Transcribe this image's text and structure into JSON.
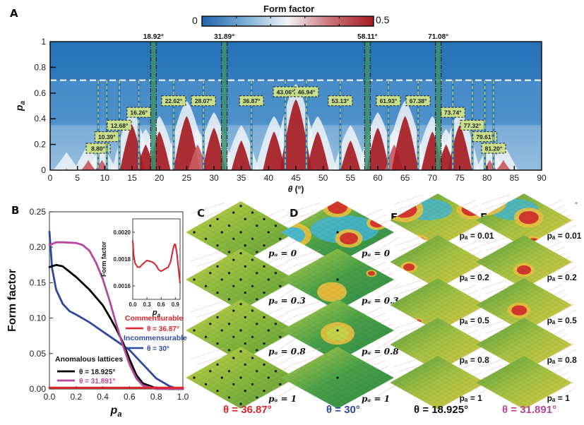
{
  "panels": {
    "A": "A",
    "B": "B",
    "C": "C",
    "D": "D",
    "E": "E",
    "F": "F",
    "stray_mark": "″"
  },
  "colors": {
    "blue": "#2672b8",
    "white": "#f3f5f8",
    "red": "#a51c22",
    "commensurable": "#e0242b",
    "incommensurable": "#2e4a9e",
    "anomalous_18": "#000000",
    "anomalous_31": "#b5479f",
    "label_box": "#c9df8c",
    "anomalous_band": "#3d8f6e",
    "dash_line": "#f2e64a"
  },
  "chart_data": [
    {
      "id": "A",
      "type": "heatmap",
      "title": "",
      "xlabel": "θ (°)",
      "ylabel": "p_a",
      "xlim": [
        0,
        90
      ],
      "ylim": [
        0,
        1
      ],
      "xticks": [
        "0",
        "5",
        "10",
        "15",
        "20",
        "25",
        "30",
        "35",
        "40",
        "45",
        "50",
        "55",
        "60",
        "65",
        "70",
        "75",
        "80",
        "85",
        "90"
      ],
      "yticks": [
        "0",
        "0.2",
        "0.4",
        "0.6",
        "0.8",
        "1"
      ],
      "colorbar": {
        "title": "Form factor",
        "min": 0,
        "max": 0.5,
        "min_label": "0",
        "max_label": "0.5",
        "colors": [
          "#2672b8",
          "#f3f5f8",
          "#a51c22"
        ]
      },
      "threshold_pa": 0.7,
      "anomalous_angles": [
        {
          "theta": 18.92,
          "label": "18.92°"
        },
        {
          "theta": 31.89,
          "label": "31.89°"
        },
        {
          "theta": 58.11,
          "label": "58.11°"
        },
        {
          "theta": 71.08,
          "label": "71.08°"
        }
      ],
      "commensurate_angles": [
        {
          "theta": 8.8,
          "label": "8.80°",
          "label_pa": 0.17
        },
        {
          "theta": 10.39,
          "label": "10.39°",
          "label_pa": 0.26
        },
        {
          "theta": 12.68,
          "label": "12.68°",
          "label_pa": 0.35
        },
        {
          "theta": 16.26,
          "label": "16.26°",
          "label_pa": 0.45
        },
        {
          "theta": 22.62,
          "label": "22.62°",
          "label_pa": 0.54
        },
        {
          "theta": 28.07,
          "label": "28.07°",
          "label_pa": 0.54
        },
        {
          "theta": 36.87,
          "label": "36.87°",
          "label_pa": 0.54
        },
        {
          "theta": 43.06,
          "label": "43.06°",
          "label_pa": 0.61
        },
        {
          "theta": 46.94,
          "label": "46.94°",
          "label_pa": 0.61
        },
        {
          "theta": 53.13,
          "label": "53.13°",
          "label_pa": 0.54
        },
        {
          "theta": 61.93,
          "label": "61.93°",
          "label_pa": 0.54
        },
        {
          "theta": 67.38,
          "label": "67.38°",
          "label_pa": 0.54
        },
        {
          "theta": 73.74,
          "label": "73.74°",
          "label_pa": 0.45
        },
        {
          "theta": 77.32,
          "label": "77.32°",
          "label_pa": 0.35
        },
        {
          "theta": 79.61,
          "label": "79.61°",
          "label_pa": 0.26
        },
        {
          "theta": 81.2,
          "label": "81.20°",
          "label_pa": 0.17
        }
      ],
      "peaks": [
        {
          "theta": 3,
          "height": 0.02,
          "intensity": 0.15
        },
        {
          "theta": 7,
          "height": 0.08,
          "intensity": 0.3
        },
        {
          "theta": 9.5,
          "height": 0.08,
          "intensity": 0.35
        },
        {
          "theta": 15,
          "height": 0.35,
          "intensity": 0.5
        },
        {
          "theta": 17.5,
          "height": 0.2,
          "intensity": 0.45
        },
        {
          "theta": 20,
          "height": 0.3,
          "intensity": 0.45
        },
        {
          "theta": 25,
          "height": 0.42,
          "intensity": 0.5
        },
        {
          "theta": 27,
          "height": 0.2,
          "intensity": 0.4
        },
        {
          "theta": 30,
          "height": 0.33,
          "intensity": 0.45
        },
        {
          "theta": 35,
          "height": 0.23,
          "intensity": 0.45
        },
        {
          "theta": 41,
          "height": 0.3,
          "intensity": 0.5
        },
        {
          "theta": 45,
          "height": 0.55,
          "intensity": 0.5
        },
        {
          "theta": 49,
          "height": 0.3,
          "intensity": 0.5
        },
        {
          "theta": 55,
          "height": 0.23,
          "intensity": 0.45
        },
        {
          "theta": 60,
          "height": 0.33,
          "intensity": 0.45
        },
        {
          "theta": 63,
          "height": 0.2,
          "intensity": 0.4
        },
        {
          "theta": 65,
          "height": 0.42,
          "intensity": 0.5
        },
        {
          "theta": 70,
          "height": 0.3,
          "intensity": 0.45
        },
        {
          "theta": 72.5,
          "height": 0.2,
          "intensity": 0.45
        },
        {
          "theta": 75,
          "height": 0.35,
          "intensity": 0.5
        },
        {
          "theta": 80.5,
          "height": 0.08,
          "intensity": 0.35
        },
        {
          "theta": 83,
          "height": 0.08,
          "intensity": 0.3
        }
      ]
    },
    {
      "id": "B",
      "type": "line",
      "xlabel": "p_a",
      "ylabel": "Form factor",
      "xlim": [
        0,
        1
      ],
      "ylim": [
        0,
        0.25
      ],
      "xticks": [
        "0.0",
        "0.2",
        "0.4",
        "0.6",
        "0.8",
        "1.0"
      ],
      "yticks": [
        "0.00",
        "0.05",
        "0.10",
        "0.15",
        "0.20",
        "0.25"
      ],
      "series": [
        {
          "name": "Commensurable θ = 36.87°",
          "color": "#e0242b",
          "x": [
            0,
            1
          ],
          "y": [
            0.0018,
            0.0018
          ]
        },
        {
          "name": "Incommensurable θ = 30°",
          "color": "#2e4a9e",
          "x": [
            0,
            0.02,
            0.05,
            0.1,
            0.15,
            0.2,
            0.3,
            0.4,
            0.5,
            0.6,
            0.7,
            0.8,
            0.9,
            0.95,
            1.0
          ],
          "y": [
            0.222,
            0.17,
            0.14,
            0.12,
            0.11,
            0.105,
            0.094,
            0.081,
            0.068,
            0.055,
            0.035,
            0.015,
            0.004,
            0.001,
            0.0
          ]
        },
        {
          "name": "Anomalous θ = 18.925°",
          "color": "#000000",
          "x": [
            0,
            0.05,
            0.1,
            0.2,
            0.3,
            0.4,
            0.45,
            0.5,
            0.55,
            0.6,
            0.65,
            0.7,
            0.8,
            0.9,
            1.0
          ],
          "y": [
            0.172,
            0.175,
            0.173,
            0.158,
            0.14,
            0.118,
            0.102,
            0.085,
            0.066,
            0.042,
            0.02,
            0.008,
            0.001,
            0.0,
            0.0
          ]
        },
        {
          "name": "Anomalous θ = 31.891°",
          "color": "#b5479f",
          "x": [
            0,
            0.05,
            0.1,
            0.2,
            0.25,
            0.3,
            0.35,
            0.4,
            0.45,
            0.5,
            0.55,
            0.6,
            0.65,
            0.7,
            0.8,
            0.9,
            1.0
          ],
          "y": [
            0.203,
            0.207,
            0.207,
            0.206,
            0.203,
            0.195,
            0.178,
            0.155,
            0.125,
            0.092,
            0.062,
            0.035,
            0.015,
            0.005,
            0.0,
            0.0,
            0.0
          ]
        }
      ],
      "legend": {
        "commensurable_title": "Commensurable",
        "commensurable_item": "θ = 36.87°",
        "incommensurable_title": "Incommensurable",
        "incommensurable_item": "θ = 30°",
        "anomalous_title": "Anomalous  lattices",
        "anomalous_item1": "θ = 18.925°",
        "anomalous_item2": "θ = 31.891°"
      },
      "inset": {
        "type": "line",
        "xlabel": "p_a",
        "ylabel": "Form factor",
        "xlim": [
          0,
          1
        ],
        "ylim": [
          0.0015,
          0.0021
        ],
        "xticks": [
          "0.0",
          "0.3",
          "0.6",
          "0.9"
        ],
        "yticks": [
          "0.0016",
          "0.0018",
          "0.0020"
        ],
        "series": [
          {
            "name": "θ = 36.87°",
            "color": "#d8232a",
            "x": [
              0,
              0.02,
              0.05,
              0.1,
              0.15,
              0.2,
              0.3,
              0.4,
              0.45,
              0.5,
              0.55,
              0.6,
              0.65,
              0.7,
              0.75,
              0.8,
              0.85,
              0.88,
              0.9,
              0.93,
              0.96,
              1.0
            ],
            "y": [
              0.00194,
              0.00183,
              0.00177,
              0.00174,
              0.00174,
              0.00176,
              0.00179,
              0.00178,
              0.00177,
              0.00175,
              0.00172,
              0.00171,
              0.00172,
              0.00173,
              0.00174,
              0.00178,
              0.00187,
              0.00191,
              0.00191,
              0.00185,
              0.00175,
              0.00162
            ]
          }
        ]
      }
    }
  ],
  "panel_C": {
    "caption": "θ = 36.87°",
    "caption_color": "#e0242b",
    "labels": [
      "pₐ = 0",
      "pₐ = 0.3",
      "pₐ = 0.8",
      "pₐ = 1"
    ]
  },
  "panel_D": {
    "caption": "θ = 30°",
    "caption_color": "#2e4a9e",
    "labels": [
      "pₐ = 0",
      "pₐ = 0.3",
      "pₐ = 0.8",
      "pₐ = 1"
    ]
  },
  "panel_E": {
    "caption": "θ = 18.925°",
    "caption_color": "#111111",
    "labels": [
      "pₐ = 0.01",
      "pₐ = 0.2",
      "pₐ = 0.5",
      "pₐ = 0.8",
      "pₐ = 1"
    ]
  },
  "panel_F": {
    "caption": "θ = 31.891°",
    "caption_color": "#b5479f",
    "labels": [
      "pₐ = 0.01",
      "pₐ = 0.2",
      "pₐ = 0.5",
      "pₐ = 0.8",
      "pₐ = 1"
    ]
  }
}
